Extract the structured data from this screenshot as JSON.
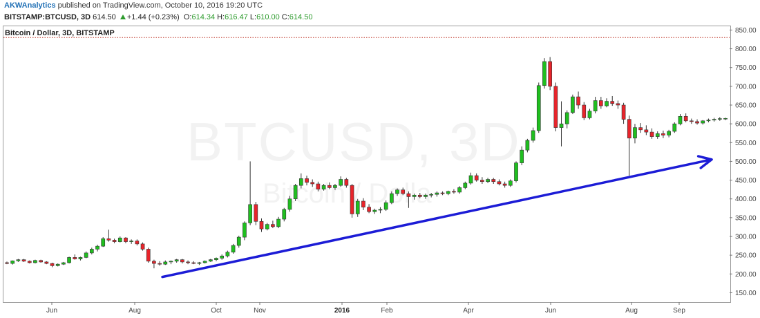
{
  "header": {
    "author": "AKWAnalytics",
    "published": "published on TradingView.com, October 10, 2016 19:20 UTC",
    "symbol": "BITSTAMP:BTCUSD, 3D",
    "last": "614.50",
    "change": "+1.44 (+0.23%)",
    "o_label": "O:",
    "o_value": "614.34",
    "h_label": "H:",
    "h_value": "616.47",
    "l_label": "L:",
    "l_value": "610.00",
    "c_label": "C:",
    "c_value": "614.50"
  },
  "chart_data": {
    "type": "candlestick",
    "title": "Bitcoin / Dollar, 3D, BITSTAMP",
    "watermark_symbol": "BTCUSD, 3D",
    "watermark_name": "Bitcoin / Dolla",
    "ylim": [
      125,
      860
    ],
    "y_ticks": [
      "150.00",
      "200.00",
      "250.00",
      "300.00",
      "350.00",
      "400.00",
      "450.00",
      "500.00",
      "550.00",
      "600.00",
      "650.00",
      "700.00",
      "750.00",
      "800.00",
      "850.00"
    ],
    "x_ticks": [
      {
        "label": "Jun",
        "bold": false
      },
      {
        "label": "Aug",
        "bold": false
      },
      {
        "label": "Oct",
        "bold": false
      },
      {
        "label": "Nov",
        "bold": false
      },
      {
        "label": "2016",
        "bold": true
      },
      {
        "label": "Feb",
        "bold": false
      },
      {
        "label": "Apr",
        "bold": false
      },
      {
        "label": "Jun",
        "bold": false
      },
      {
        "label": "Aug",
        "bold": false
      },
      {
        "label": "Sep",
        "bold": false
      }
    ],
    "dotted_level": 830,
    "colors": {
      "up": "#1fbf1f",
      "down": "#e8242b",
      "trend": "#1c1cd6",
      "dotted": "#c0392b"
    },
    "trendline": {
      "from": [
        "2015-08-18",
        192
      ],
      "to": [
        "2016-10-07",
        505
      ]
    },
    "candles": [
      [
        230,
        233,
        226,
        228
      ],
      [
        228,
        236,
        225,
        235
      ],
      [
        235,
        240,
        232,
        238
      ],
      [
        238,
        240,
        232,
        234
      ],
      [
        234,
        236,
        228,
        230
      ],
      [
        230,
        238,
        228,
        236
      ],
      [
        236,
        238,
        230,
        232
      ],
      [
        232,
        234,
        226,
        228
      ],
      [
        228,
        230,
        218,
        222
      ],
      [
        222,
        228,
        220,
        226
      ],
      [
        226,
        232,
        224,
        230
      ],
      [
        230,
        246,
        228,
        244
      ],
      [
        244,
        252,
        238,
        240
      ],
      [
        240,
        246,
        236,
        244
      ],
      [
        244,
        260,
        242,
        256
      ],
      [
        256,
        270,
        252,
        266
      ],
      [
        266,
        278,
        260,
        274
      ],
      [
        274,
        298,
        272,
        294
      ],
      [
        294,
        318,
        286,
        290
      ],
      [
        290,
        294,
        282,
        286
      ],
      [
        286,
        300,
        284,
        296
      ],
      [
        296,
        298,
        282,
        286
      ],
      [
        286,
        292,
        280,
        288
      ],
      [
        288,
        292,
        276,
        280
      ],
      [
        280,
        284,
        262,
        266
      ],
      [
        266,
        270,
        230,
        234
      ],
      [
        234,
        238,
        215,
        228
      ],
      [
        228,
        234,
        222,
        226
      ],
      [
        226,
        236,
        224,
        232
      ],
      [
        232,
        236,
        226,
        234
      ],
      [
        234,
        240,
        230,
        238
      ],
      [
        238,
        240,
        228,
        232
      ],
      [
        232,
        236,
        226,
        230
      ],
      [
        230,
        234,
        226,
        228
      ],
      [
        228,
        232,
        224,
        230
      ],
      [
        230,
        236,
        228,
        234
      ],
      [
        234,
        240,
        232,
        238
      ],
      [
        238,
        244,
        234,
        242
      ],
      [
        242,
        252,
        238,
        248
      ],
      [
        248,
        262,
        244,
        258
      ],
      [
        258,
        280,
        254,
        276
      ],
      [
        276,
        302,
        270,
        298
      ],
      [
        298,
        340,
        290,
        336
      ],
      [
        336,
        500,
        330,
        385
      ],
      [
        385,
        392,
        330,
        340
      ],
      [
        340,
        348,
        312,
        320
      ],
      [
        320,
        336,
        316,
        332
      ],
      [
        332,
        342,
        322,
        326
      ],
      [
        326,
        352,
        322,
        346
      ],
      [
        346,
        376,
        340,
        372
      ],
      [
        372,
        408,
        366,
        400
      ],
      [
        400,
        440,
        394,
        436
      ],
      [
        436,
        468,
        428,
        454
      ],
      [
        454,
        462,
        436,
        444
      ],
      [
        444,
        452,
        432,
        440
      ],
      [
        440,
        446,
        420,
        426
      ],
      [
        426,
        440,
        422,
        436
      ],
      [
        436,
        444,
        426,
        430
      ],
      [
        430,
        440,
        424,
        436
      ],
      [
        436,
        460,
        432,
        452
      ],
      [
        452,
        456,
        430,
        436
      ],
      [
        436,
        440,
        350,
        360
      ],
      [
        360,
        400,
        352,
        394
      ],
      [
        394,
        402,
        370,
        378
      ],
      [
        378,
        386,
        362,
        366
      ],
      [
        366,
        374,
        360,
        370
      ],
      [
        370,
        378,
        362,
        372
      ],
      [
        372,
        396,
        368,
        390
      ],
      [
        390,
        420,
        386,
        414
      ],
      [
        414,
        428,
        408,
        424
      ],
      [
        424,
        430,
        410,
        414
      ],
      [
        414,
        420,
        376,
        406
      ],
      [
        406,
        414,
        398,
        410
      ],
      [
        410,
        416,
        402,
        406
      ],
      [
        406,
        414,
        400,
        410
      ],
      [
        410,
        416,
        404,
        412
      ],
      [
        412,
        420,
        406,
        416
      ],
      [
        416,
        420,
        410,
        414
      ],
      [
        414,
        422,
        410,
        420
      ],
      [
        420,
        426,
        414,
        418
      ],
      [
        418,
        434,
        414,
        430
      ],
      [
        430,
        446,
        426,
        442
      ],
      [
        442,
        470,
        438,
        462
      ],
      [
        462,
        468,
        446,
        450
      ],
      [
        450,
        458,
        440,
        446
      ],
      [
        446,
        456,
        442,
        452
      ],
      [
        452,
        456,
        440,
        446
      ],
      [
        446,
        452,
        436,
        440
      ],
      [
        440,
        446,
        430,
        436
      ],
      [
        436,
        452,
        432,
        448
      ],
      [
        448,
        500,
        444,
        496
      ],
      [
        496,
        540,
        490,
        530
      ],
      [
        530,
        560,
        524,
        556
      ],
      [
        556,
        590,
        550,
        582
      ],
      [
        582,
        710,
        576,
        702
      ],
      [
        702,
        775,
        694,
        766
      ],
      [
        766,
        778,
        690,
        700
      ],
      [
        700,
        710,
        580,
        590
      ],
      [
        590,
        660,
        540,
        600
      ],
      [
        600,
        636,
        588,
        630
      ],
      [
        630,
        678,
        626,
        672
      ],
      [
        672,
        686,
        640,
        650
      ],
      [
        650,
        658,
        610,
        616
      ],
      [
        616,
        640,
        612,
        634
      ],
      [
        634,
        672,
        628,
        662
      ],
      [
        662,
        672,
        640,
        648
      ],
      [
        648,
        668,
        644,
        660
      ],
      [
        660,
        674,
        648,
        654
      ],
      [
        654,
        662,
        640,
        650
      ],
      [
        650,
        656,
        600,
        612
      ],
      [
        612,
        622,
        462,
        562
      ],
      [
        562,
        600,
        548,
        590
      ],
      [
        590,
        602,
        576,
        584
      ],
      [
        584,
        596,
        570,
        578
      ],
      [
        578,
        588,
        560,
        566
      ],
      [
        566,
        580,
        560,
        574
      ],
      [
        574,
        582,
        562,
        570
      ],
      [
        570,
        584,
        564,
        580
      ],
      [
        580,
        604,
        576,
        600
      ],
      [
        600,
        626,
        596,
        620
      ],
      [
        620,
        628,
        604,
        608
      ],
      [
        608,
        614,
        600,
        606
      ],
      [
        606,
        612,
        598,
        602
      ],
      [
        602,
        610,
        598,
        608
      ],
      [
        608,
        614,
        604,
        610
      ],
      [
        610,
        616,
        606,
        612
      ],
      [
        612,
        618,
        608,
        614
      ],
      [
        614.34,
        616.47,
        610,
        614.5
      ]
    ]
  }
}
